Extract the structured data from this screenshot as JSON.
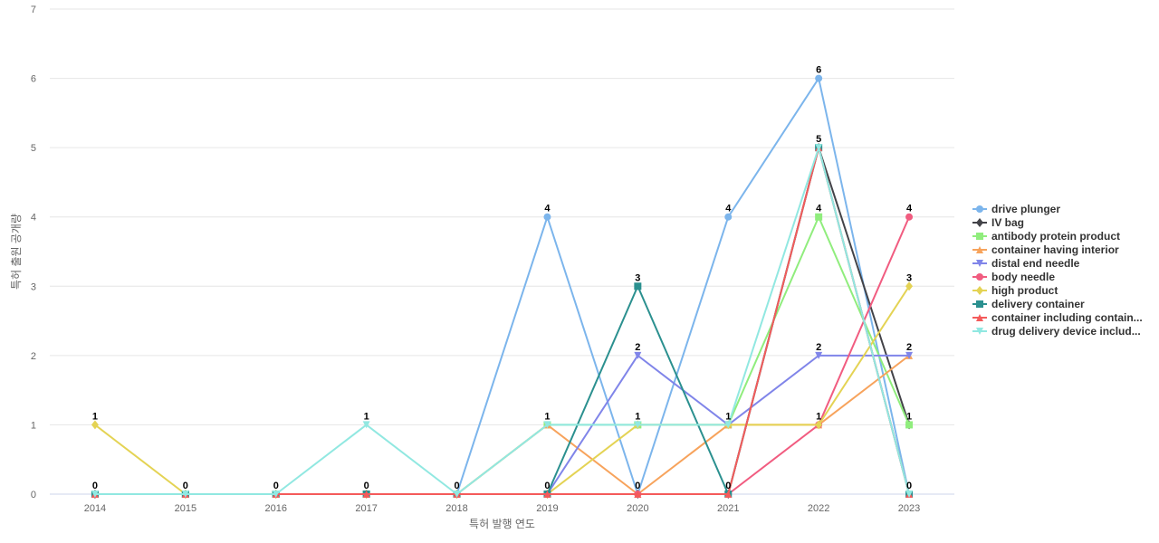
{
  "chart_data": {
    "type": "line",
    "title": "",
    "xlabel": "특허 발행 연도",
    "ylabel": "특허 출원 공개량",
    "categories": [
      "2014",
      "2015",
      "2016",
      "2017",
      "2018",
      "2019",
      "2020",
      "2021",
      "2022",
      "2023"
    ],
    "ylim": [
      0,
      7
    ],
    "yticks": [
      "0",
      "1",
      "2",
      "3",
      "4",
      "5",
      "6",
      "7"
    ],
    "grid": true,
    "legend": "right",
    "series": [
      {
        "name": "drive plunger",
        "color": "#7cb5ec",
        "marker": "circle",
        "values": [
          0,
          0,
          0,
          0,
          0,
          4,
          0,
          4,
          6,
          0
        ]
      },
      {
        "name": "IV bag",
        "color": "#434348",
        "marker": "diamond",
        "values": [
          0,
          0,
          0,
          0,
          0,
          0,
          0,
          0,
          5,
          1
        ]
      },
      {
        "name": "antibody protein product",
        "color": "#90ed7d",
        "marker": "square",
        "values": [
          0,
          0,
          0,
          0,
          0,
          1,
          1,
          1,
          4,
          1
        ]
      },
      {
        "name": "container having interior",
        "color": "#f7a35c",
        "marker": "triangle",
        "values": [
          0,
          0,
          0,
          0,
          0,
          1,
          0,
          1,
          1,
          2
        ]
      },
      {
        "name": "distal end needle",
        "color": "#8085e9",
        "marker": "triangle-down",
        "values": [
          0,
          0,
          0,
          0,
          0,
          0,
          2,
          1,
          2,
          2
        ]
      },
      {
        "name": "body needle",
        "color": "#f15c80",
        "marker": "circle",
        "values": [
          0,
          0,
          0,
          0,
          0,
          0,
          0,
          0,
          1,
          4
        ]
      },
      {
        "name": "high product",
        "color": "#e4d354",
        "marker": "diamond",
        "values": [
          1,
          0,
          0,
          0,
          0,
          0,
          1,
          1,
          1,
          3
        ]
      },
      {
        "name": "delivery container",
        "color": "#2b908f",
        "marker": "square",
        "values": [
          0,
          0,
          0,
          0,
          0,
          0,
          3,
          0,
          5,
          0
        ]
      },
      {
        "name": "container including contain...",
        "color": "#f45b5b",
        "marker": "triangle",
        "values": [
          0,
          0,
          0,
          0,
          0,
          0,
          0,
          0,
          5,
          0
        ]
      },
      {
        "name": "drug delivery device includ...",
        "color": "#91e8e1",
        "marker": "triangle-down",
        "values": [
          0,
          0,
          0,
          1,
          0,
          1,
          1,
          1,
          5,
          0
        ]
      }
    ],
    "data_labels": [
      {
        "cat": "2014",
        "top": 1,
        "bottom": 0
      },
      {
        "cat": "2015",
        "bottom": 0
      },
      {
        "cat": "2016",
        "bottom": 0
      },
      {
        "cat": "2017",
        "top": 1,
        "bottom": 0
      },
      {
        "cat": "2018",
        "bottom": 0
      },
      {
        "cat": "2019",
        "top": 4,
        "mid": 1,
        "bottom": 0
      },
      {
        "cat": "2020",
        "top": 3,
        "mid": 2,
        "mid2": 1,
        "bottom": 0
      },
      {
        "cat": "2021",
        "top": 4,
        "mid": 1,
        "bottom": 0
      },
      {
        "cat": "2022",
        "top": 6,
        "mid": 5,
        "mid2": 4,
        "mid3": 2,
        "mid4": 1
      },
      {
        "cat": "2023",
        "top": 4,
        "mid": 3,
        "mid2": 2,
        "mid3": 1,
        "bottom": 0
      }
    ]
  }
}
